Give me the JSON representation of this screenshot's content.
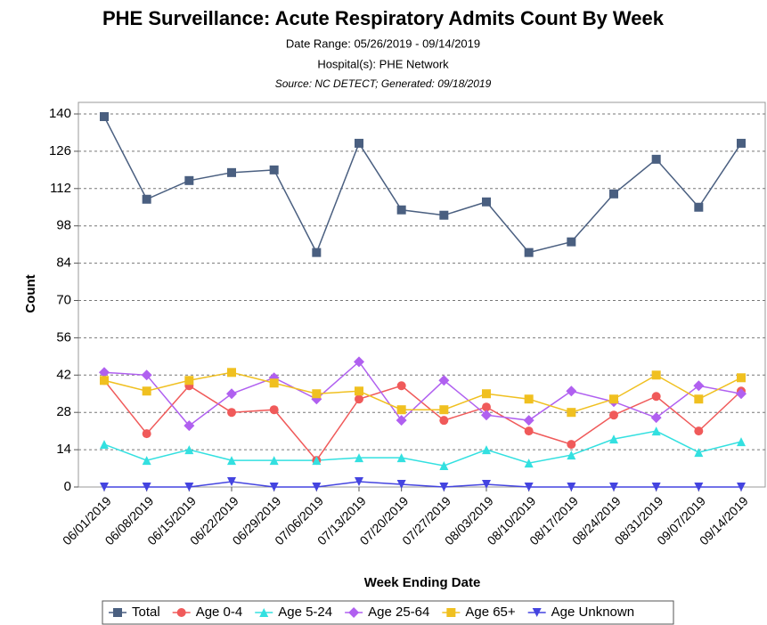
{
  "chart_data": {
    "type": "line",
    "title": "PHE Surveillance: Acute Respiratory Admits Count By Week",
    "subtitle": [
      "Date Range: 05/26/2019 - 09/14/2019",
      "Hospital(s): PHE Network",
      "Source: NC DETECT; Generated: 09/18/2019"
    ],
    "x_label": "Week Ending Date",
    "y_label": "Count",
    "categories": [
      "06/01/2019",
      "06/08/2019",
      "06/15/2019",
      "06/22/2019",
      "06/29/2019",
      "07/06/2019",
      "07/13/2019",
      "07/20/2019",
      "07/27/2019",
      "08/03/2019",
      "08/10/2019",
      "08/17/2019",
      "08/24/2019",
      "08/31/2019",
      "09/07/2019",
      "09/14/2019"
    ],
    "ylim": [
      0,
      140
    ],
    "yticks": [
      0,
      14,
      28,
      42,
      56,
      70,
      84,
      98,
      112,
      126,
      140
    ],
    "grid": true,
    "legend": "bottom",
    "series": [
      {
        "name": "Total",
        "color": "#4a5f80",
        "marker": "square",
        "values": [
          139,
          108,
          115,
          118,
          119,
          88,
          129,
          104,
          102,
          107,
          88,
          92,
          110,
          123,
          105,
          129
        ]
      },
      {
        "name": "Age 0-4",
        "color": "#f05a5a",
        "marker": "circle",
        "values": [
          40,
          20,
          38,
          28,
          29,
          10,
          33,
          38,
          25,
          30,
          21,
          16,
          27,
          34,
          21,
          36
        ]
      },
      {
        "name": "Age 5-24",
        "color": "#33e0e0",
        "marker": "triangle-up",
        "values": [
          16,
          10,
          14,
          10,
          10,
          10,
          11,
          11,
          8,
          14,
          9,
          12,
          18,
          21,
          13,
          17
        ]
      },
      {
        "name": "Age 25-64",
        "color": "#b060f0",
        "marker": "diamond",
        "values": [
          43,
          42,
          23,
          35,
          41,
          33,
          47,
          25,
          40,
          27,
          25,
          36,
          32,
          26,
          38,
          35
        ]
      },
      {
        "name": "Age 65+",
        "color": "#f0c020",
        "marker": "square",
        "values": [
          40,
          36,
          40,
          43,
          39,
          35,
          36,
          29,
          29,
          35,
          33,
          28,
          33,
          42,
          33,
          41
        ]
      },
      {
        "name": "Age Unknown",
        "color": "#4444e0",
        "marker": "triangle-down",
        "values": [
          0,
          0,
          0,
          2,
          0,
          0,
          2,
          1,
          0,
          1,
          0,
          0,
          0,
          0,
          0,
          0
        ]
      }
    ]
  }
}
